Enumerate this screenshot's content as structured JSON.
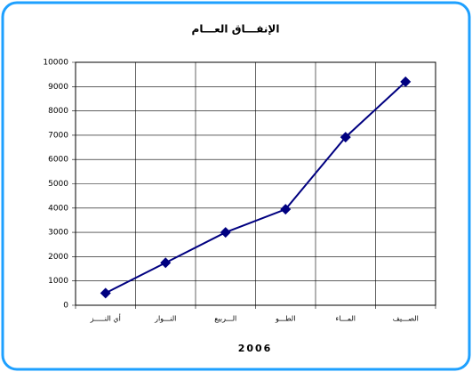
{
  "chart_data": {
    "type": "line",
    "title": "الإنفـــاق العـــام",
    "x_label": "2006",
    "categories": [
      "أي النـــــز",
      "النـــوار",
      "الـــربيع",
      "الطـــو",
      "المـــاء",
      "الصـــيف"
    ],
    "series": [
      {
        "name": "الإنفـــاق العـــام",
        "color": "#000080",
        "values": [
          500,
          1750,
          3000,
          3950,
          6920,
          9200
        ]
      }
    ],
    "ylim": [
      0,
      10000
    ],
    "yticks": [
      0,
      1000,
      2000,
      3000,
      4000,
      5000,
      6000,
      7000,
      8000,
      9000,
      10000
    ],
    "grid": true
  }
}
